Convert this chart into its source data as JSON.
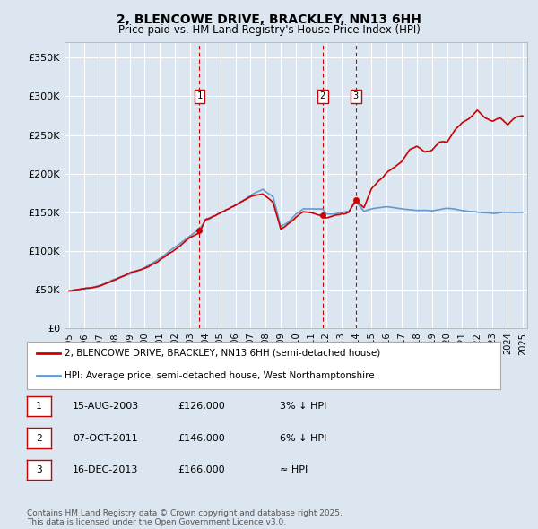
{
  "title": "2, BLENCOWE DRIVE, BRACKLEY, NN13 6HH",
  "subtitle": "Price paid vs. HM Land Registry's House Price Index (HPI)",
  "background_color": "#dce6f1",
  "ylim": [
    0,
    370000
  ],
  "yticks": [
    0,
    50000,
    100000,
    150000,
    200000,
    250000,
    300000,
    350000
  ],
  "ytick_labels": [
    "£0",
    "£50K",
    "£100K",
    "£150K",
    "£200K",
    "£250K",
    "£300K",
    "£350K"
  ],
  "year_start": 1995,
  "year_end": 2025,
  "transactions": [
    {
      "date": 2003.62,
      "price": 126000,
      "label": "1"
    },
    {
      "date": 2011.77,
      "price": 146000,
      "label": "2"
    },
    {
      "date": 2013.96,
      "price": 166000,
      "label": "3"
    }
  ],
  "transaction_details": [
    {
      "num": "1",
      "date": "15-AUG-2003",
      "price": "£126,000",
      "vs_hpi": "3% ↓ HPI"
    },
    {
      "num": "2",
      "date": "07-OCT-2011",
      "price": "£146,000",
      "vs_hpi": "6% ↓ HPI"
    },
    {
      "num": "3",
      "date": "16-DEC-2013",
      "price": "£166,000",
      "vs_hpi": "≈ HPI"
    }
  ],
  "legend_entries": [
    {
      "label": "2, BLENCOWE DRIVE, BRACKLEY, NN13 6HH (semi-detached house)",
      "color": "#cc0000"
    },
    {
      "label": "HPI: Average price, semi-detached house, West Northamptonshire",
      "color": "#6699cc"
    }
  ],
  "footnote": "Contains HM Land Registry data © Crown copyright and database right 2025.\nThis data is licensed under the Open Government Licence v3.0.",
  "red_line_color": "#cc0000",
  "blue_line_color": "#6699cc",
  "vline_color": "#cc0000",
  "grid_color": "#ffffff"
}
